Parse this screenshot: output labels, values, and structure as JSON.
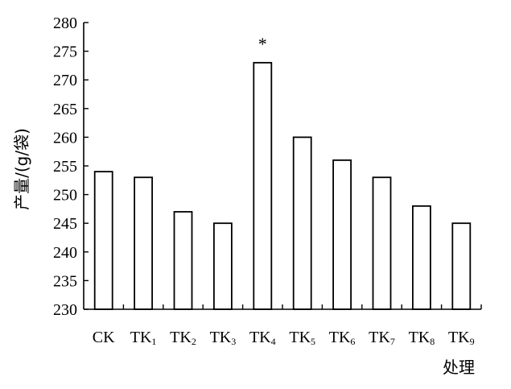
{
  "chart_data": {
    "type": "bar",
    "categories": [
      {
        "base": "CK",
        "sub": ""
      },
      {
        "base": "TK",
        "sub": "1"
      },
      {
        "base": "TK",
        "sub": "2"
      },
      {
        "base": "TK",
        "sub": "3"
      },
      {
        "base": "TK",
        "sub": "4"
      },
      {
        "base": "TK",
        "sub": "5"
      },
      {
        "base": "TK",
        "sub": "6"
      },
      {
        "base": "TK",
        "sub": "7"
      },
      {
        "base": "TK",
        "sub": "8"
      },
      {
        "base": "TK",
        "sub": "9"
      }
    ],
    "values": [
      254,
      253,
      247,
      245,
      273,
      260,
      256,
      253,
      248,
      245
    ],
    "annotations": [
      {
        "category_index": 4,
        "text": "*"
      }
    ],
    "title": "",
    "xlabel": "处理",
    "ylabel": "产量/(g/袋)",
    "ylim": [
      230,
      280
    ],
    "yticks": [
      230,
      235,
      240,
      245,
      250,
      255,
      260,
      265,
      270,
      275,
      280
    ],
    "grid": false,
    "colors": {
      "bar_fill": "#ffffff",
      "bar_stroke": "#000000",
      "axis": "#000000"
    }
  }
}
